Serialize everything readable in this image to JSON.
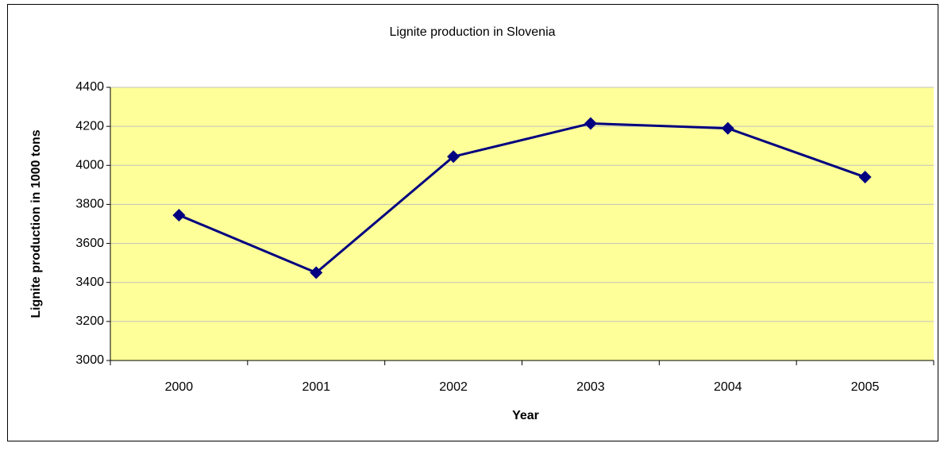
{
  "chart_data": {
    "type": "line",
    "title": "Lignite production in Slovenia",
    "x_label": "Year",
    "y_label": "Lignite production in 1000 tons",
    "categories": [
      "2000",
      "2001",
      "2002",
      "2003",
      "2004",
      "2005"
    ],
    "series": [
      {
        "name": "Lignite production",
        "color": "#000080",
        "values": [
          3745,
          3450,
          4045,
          4215,
          4190,
          3940
        ]
      }
    ],
    "ylim": [
      3000,
      4400
    ],
    "yticks": [
      3000,
      3200,
      3400,
      3600,
      3800,
      4000,
      4200,
      4400
    ],
    "grid": true,
    "plot_background": "#ffff99"
  }
}
